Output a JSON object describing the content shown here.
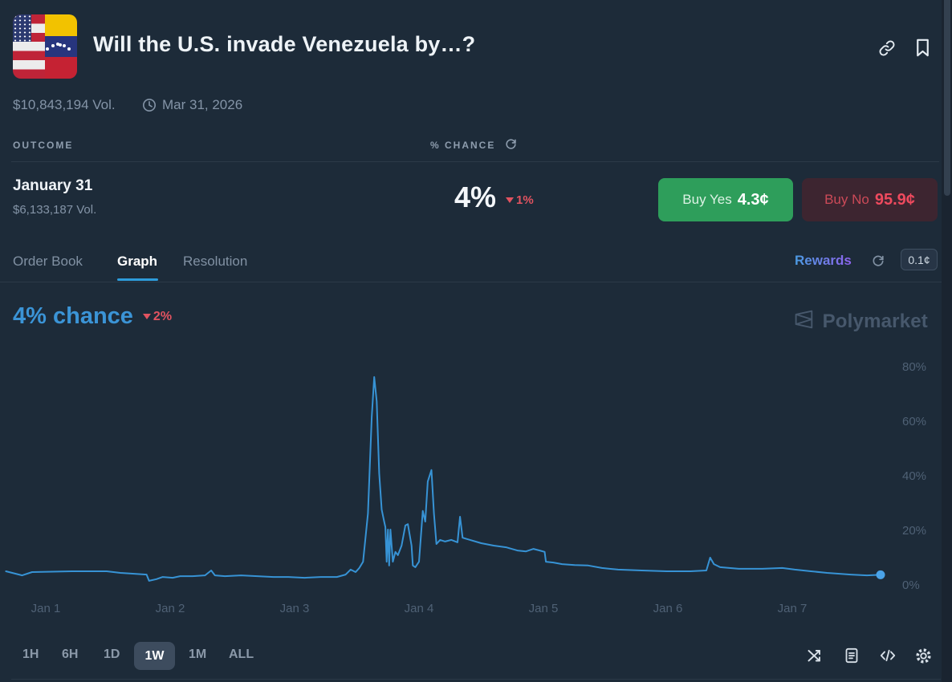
{
  "header": {
    "title": "Will the U.S. invade Venezuela by…?",
    "volume": "$10,843,194 Vol.",
    "end_date": "Mar 31, 2026",
    "icons": [
      "us-venezuela-flag",
      "link-icon",
      "bookmark-icon",
      "clock-icon"
    ]
  },
  "outcome_table": {
    "outcome_header": "OUTCOME",
    "chance_header": "% CHANCE",
    "row": {
      "outcome": "January 31",
      "volume": "$6,133,187 Vol.",
      "chance": "4%",
      "change_down": "1%",
      "buy_yes_label": "Buy Yes",
      "buy_yes_price": "4.3¢",
      "buy_no_label": "Buy No",
      "buy_no_price": "95.9¢"
    }
  },
  "tabs": {
    "items": [
      "Order Book",
      "Graph",
      "Resolution"
    ],
    "active": "Graph",
    "rewards_label": "Rewards",
    "fee_badge": "0.1¢"
  },
  "chart_header": {
    "chance": "4% chance",
    "change_down": "2%",
    "watermark": "Polymarket"
  },
  "chart_data": {
    "type": "line",
    "title": "January 31 outcome — % chance, 1 week",
    "x_ticks": [
      "Jan 1",
      "Jan 2",
      "Jan 3",
      "Jan 4",
      "Jan 5",
      "Jan 6",
      "Jan 7"
    ],
    "y_ticks": [
      80,
      60,
      40,
      20,
      0
    ],
    "y_tick_suffix": "%",
    "ylim": [
      0,
      85
    ],
    "xlim_days": [
      0.68,
      7.71
    ],
    "line_color": "#3793d5",
    "dot_color": "#4aa3e8",
    "legend": "none",
    "grid": "off",
    "current_value_pct": 4,
    "points": [
      [
        0.68,
        5.3
      ],
      [
        0.81,
        3.8
      ],
      [
        0.89,
        5.0
      ],
      [
        1.21,
        5.3
      ],
      [
        1.49,
        5.3
      ],
      [
        1.6,
        4.7
      ],
      [
        1.81,
        4.1
      ],
      [
        1.83,
        1.8
      ],
      [
        1.89,
        2.4
      ],
      [
        1.94,
        3.2
      ],
      [
        2.02,
        2.9
      ],
      [
        2.08,
        3.5
      ],
      [
        2.18,
        3.5
      ],
      [
        2.28,
        3.8
      ],
      [
        2.33,
        5.6
      ],
      [
        2.36,
        3.8
      ],
      [
        2.44,
        3.5
      ],
      [
        2.57,
        3.8
      ],
      [
        2.7,
        3.5
      ],
      [
        2.83,
        3.2
      ],
      [
        2.95,
        3.2
      ],
      [
        3.08,
        2.9
      ],
      [
        3.21,
        3.2
      ],
      [
        3.34,
        3.2
      ],
      [
        3.41,
        4.1
      ],
      [
        3.45,
        5.9
      ],
      [
        3.49,
        5.0
      ],
      [
        3.52,
        6.5
      ],
      [
        3.55,
        8.8
      ],
      [
        3.59,
        26.5
      ],
      [
        3.62,
        61.8
      ],
      [
        3.64,
        76.5
      ],
      [
        3.66,
        67.6
      ],
      [
        3.68,
        41.2
      ],
      [
        3.7,
        27.9
      ],
      [
        3.72,
        23.5
      ],
      [
        3.73,
        21.5
      ],
      [
        3.74,
        8.8
      ],
      [
        3.75,
        20.6
      ],
      [
        3.76,
        7.4
      ],
      [
        3.77,
        20.6
      ],
      [
        3.79,
        8.8
      ],
      [
        3.81,
        12.4
      ],
      [
        3.83,
        11.2
      ],
      [
        3.86,
        14.7
      ],
      [
        3.89,
        22.1
      ],
      [
        3.91,
        22.6
      ],
      [
        3.94,
        14.7
      ],
      [
        3.95,
        7.4
      ],
      [
        3.97,
        6.8
      ],
      [
        4.0,
        8.8
      ],
      [
        4.03,
        27.4
      ],
      [
        4.05,
        23.5
      ],
      [
        4.07,
        38.2
      ],
      [
        4.1,
        42.4
      ],
      [
        4.12,
        26.5
      ],
      [
        4.14,
        15.3
      ],
      [
        4.17,
        16.8
      ],
      [
        4.21,
        16.2
      ],
      [
        4.26,
        16.8
      ],
      [
        4.31,
        15.9
      ],
      [
        4.33,
        25.3
      ],
      [
        4.35,
        17.6
      ],
      [
        4.41,
        16.8
      ],
      [
        4.5,
        15.6
      ],
      [
        4.6,
        14.7
      ],
      [
        4.7,
        14.1
      ],
      [
        4.79,
        12.9
      ],
      [
        4.86,
        12.6
      ],
      [
        4.92,
        13.5
      ],
      [
        4.97,
        12.9
      ],
      [
        5.01,
        12.4
      ],
      [
        5.02,
        8.8
      ],
      [
        5.08,
        8.5
      ],
      [
        5.15,
        7.9
      ],
      [
        5.25,
        7.6
      ],
      [
        5.36,
        7.4
      ],
      [
        5.47,
        6.5
      ],
      [
        5.6,
        5.9
      ],
      [
        5.79,
        5.6
      ],
      [
        5.99,
        5.3
      ],
      [
        6.18,
        5.3
      ],
      [
        6.31,
        5.6
      ],
      [
        6.34,
        10.3
      ],
      [
        6.37,
        7.9
      ],
      [
        6.42,
        6.8
      ],
      [
        6.57,
        6.2
      ],
      [
        6.76,
        6.2
      ],
      [
        6.92,
        6.5
      ],
      [
        7.02,
        5.9
      ],
      [
        7.15,
        5.3
      ],
      [
        7.28,
        4.7
      ],
      [
        7.47,
        4.1
      ],
      [
        7.6,
        3.8
      ],
      [
        7.71,
        4.0
      ]
    ]
  },
  "toolbar": {
    "ranges": [
      "1H",
      "6H",
      "1D",
      "1W",
      "1M",
      "ALL"
    ],
    "active_range": "1W",
    "icons": [
      "shuffle-icon",
      "file-text-icon",
      "code-icon",
      "gear-icon"
    ]
  },
  "colors": {
    "background": "#1d2b39",
    "accent_blue": "#2d9cdb",
    "buy_yes_green": "#2e9e5b",
    "buy_no_red": "#ef4a5e",
    "down_red": "#e25360"
  }
}
